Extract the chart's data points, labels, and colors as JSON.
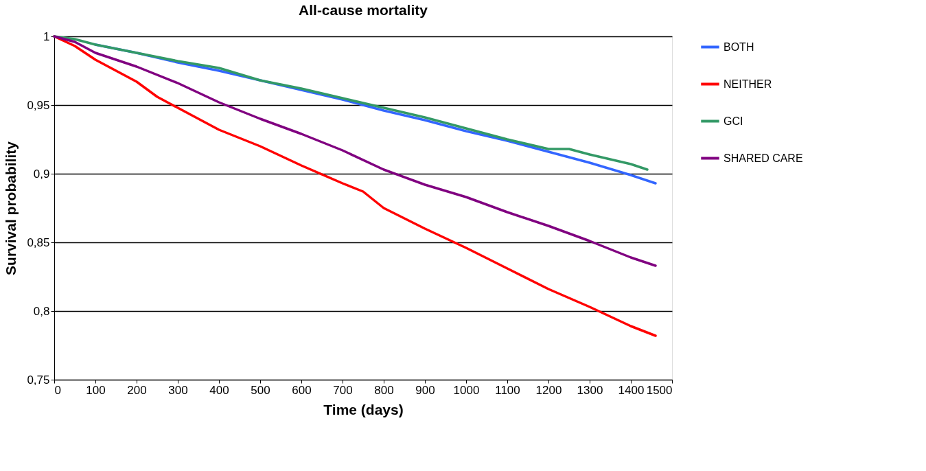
{
  "chart_data": {
    "type": "line",
    "title": "All-cause mortality",
    "xlabel": "Time (days)",
    "ylabel": "Survival probability",
    "xlim": [
      0,
      1500
    ],
    "xticks": [
      0,
      100,
      200,
      300,
      400,
      500,
      600,
      700,
      800,
      900,
      1000,
      1100,
      1200,
      1300,
      1400,
      1500
    ],
    "ylim": [
      0.75,
      1
    ],
    "yticks": [
      {
        "value": 0.75,
        "label": "0,75"
      },
      {
        "value": 0.8,
        "label": "0,8"
      },
      {
        "value": 0.85,
        "label": "0,85"
      },
      {
        "value": 0.9,
        "label": "0,9"
      },
      {
        "value": 0.95,
        "label": "0,95"
      },
      {
        "value": 1,
        "label": "1"
      }
    ],
    "grid": "y",
    "legend": "right",
    "marker": "none",
    "line_style": "solid",
    "series": [
      {
        "name": "BOTH",
        "color": "#3366ff",
        "x": [
          100,
          200,
          300,
          400,
          500,
          600,
          700,
          800,
          900,
          1000,
          1100,
          1200,
          1300,
          1400,
          1460
        ],
        "values": [
          0.994,
          0.988,
          0.981,
          0.975,
          0.968,
          0.961,
          0.954,
          0.946,
          0.939,
          0.931,
          0.924,
          0.916,
          0.908,
          0.899,
          0.893
        ]
      },
      {
        "name": "NEITHER",
        "color": "#ff0000",
        "x": [
          0,
          50,
          100,
          150,
          200,
          250,
          300,
          400,
          500,
          600,
          700,
          750,
          800,
          900,
          1000,
          1100,
          1200,
          1300,
          1400,
          1460
        ],
        "values": [
          1,
          0.993,
          0.983,
          0.975,
          0.967,
          0.956,
          0.948,
          0.932,
          0.92,
          0.906,
          0.893,
          0.887,
          0.875,
          0.86,
          0.846,
          0.831,
          0.816,
          0.803,
          0.789,
          0.782
        ]
      },
      {
        "name": "GCI",
        "color": "#339966",
        "x": [
          0,
          50,
          100,
          200,
          300,
          400,
          500,
          600,
          700,
          800,
          900,
          1000,
          1100,
          1200,
          1250,
          1300,
          1400,
          1440
        ],
        "values": [
          1,
          0.998,
          0.994,
          0.988,
          0.982,
          0.977,
          0.968,
          0.962,
          0.955,
          0.948,
          0.941,
          0.933,
          0.925,
          0.918,
          0.918,
          0.914,
          0.907,
          0.903
        ]
      },
      {
        "name": "SHARED CARE",
        "color": "#800080",
        "x": [
          0,
          50,
          100,
          200,
          300,
          400,
          500,
          600,
          700,
          800,
          900,
          1000,
          1100,
          1200,
          1300,
          1400,
          1460
        ],
        "values": [
          1,
          0.996,
          0.988,
          0.978,
          0.966,
          0.952,
          0.94,
          0.929,
          0.917,
          0.903,
          0.892,
          0.883,
          0.872,
          0.862,
          0.851,
          0.839,
          0.833
        ]
      }
    ]
  }
}
